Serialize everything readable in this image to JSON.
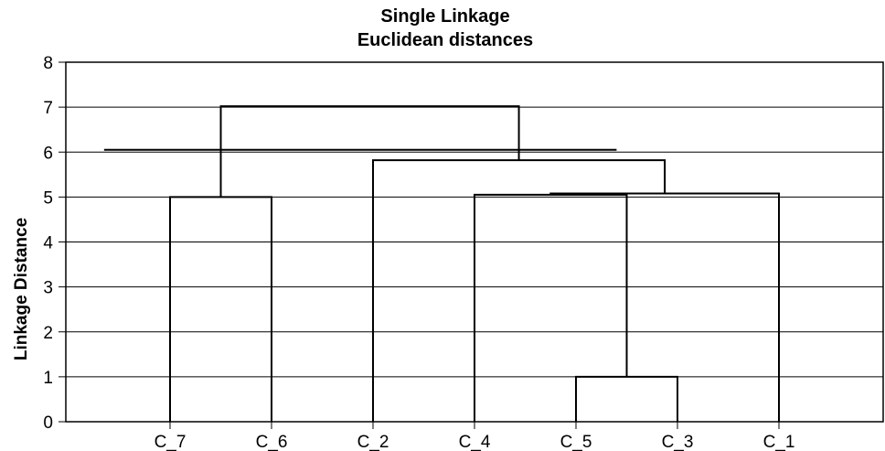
{
  "chart_data": {
    "type": "dendrogram",
    "title": "Single Linkage",
    "subtitle": "Euclidean distances",
    "xlabel": "",
    "ylabel": "Linkage Distance",
    "ylim": [
      0,
      8
    ],
    "yticks": [
      0,
      1,
      2,
      3,
      4,
      5,
      6,
      7,
      8
    ],
    "grid": true,
    "leaves": [
      "C_7",
      "C_6",
      "C_2",
      "C_4",
      "C_5",
      "C_3",
      "C_1"
    ],
    "merges": [
      {
        "id": "m1",
        "left": "C_5",
        "right": "C_3",
        "height": 1.0
      },
      {
        "id": "m2",
        "left": "C_7",
        "right": "C_6",
        "height": 5.0
      },
      {
        "id": "m3",
        "left": "C_4",
        "right": "m1",
        "height": 5.05
      },
      {
        "id": "m4",
        "left": "m3",
        "right": "C_1",
        "height": 5.08
      },
      {
        "id": "m5",
        "left": "C_2",
        "right": "m4",
        "height": 5.82
      },
      {
        "id": "m6",
        "left": "m2",
        "right": "m5",
        "height": 7.02
      }
    ],
    "cut_line": {
      "value": 6.05,
      "x_from_leaf": 0.35,
      "x_to_leaf": 4.4
    }
  }
}
